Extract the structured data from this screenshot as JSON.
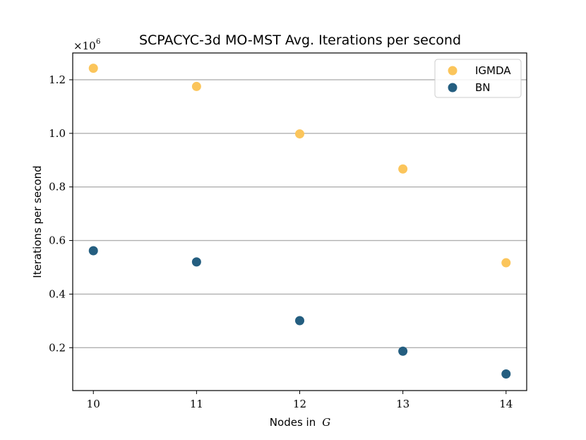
{
  "chart_data": {
    "type": "scatter",
    "title": "SCPACYC-3d MO-MST Avg. Iterations per second",
    "xlabel_prefix": "Nodes in",
    "xlabel_var": "G",
    "ylabel": "Iterations per second",
    "y_multiplier_base": "×10",
    "y_multiplier_exp": "6",
    "x": [
      10,
      11,
      12,
      13,
      14
    ],
    "x_tick_labels": [
      "10",
      "11",
      "12",
      "13",
      "14"
    ],
    "xlim": [
      9.8,
      14.2
    ],
    "ylim": [
      0.04,
      1.3
    ],
    "y_ticks": [
      0.2,
      0.4,
      0.6,
      0.8,
      1.0,
      1.2
    ],
    "y_tick_labels": [
      "0.2",
      "0.4",
      "0.6",
      "0.8",
      "1.0",
      "1.2"
    ],
    "grid": "horizontal",
    "legend_position": "top-right",
    "series": [
      {
        "name": "IGMDA",
        "color": "#fbc55b",
        "values": [
          1.243,
          1.175,
          0.998,
          0.867,
          0.517
        ]
      },
      {
        "name": "BN",
        "color": "#245e80",
        "values": [
          0.562,
          0.52,
          0.301,
          0.187,
          0.102
        ]
      }
    ]
  }
}
